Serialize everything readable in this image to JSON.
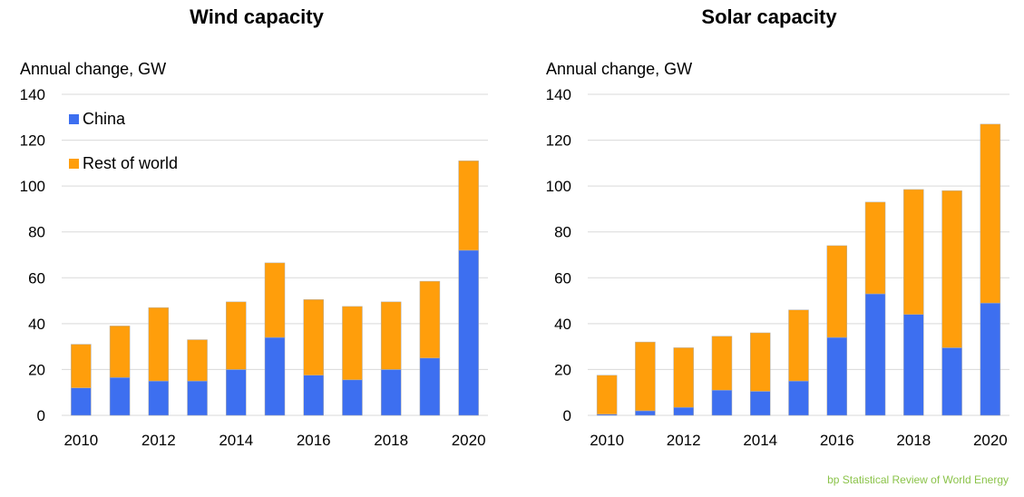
{
  "colors": {
    "china": "#3d6ff0",
    "rest_of_world": "#ff9e0b",
    "grid": "#d9d9d9",
    "source": "#8bc34a"
  },
  "source": "bp Statistical Review of World Energy",
  "chart_data": [
    {
      "type": "bar",
      "stacked": true,
      "title": "Wind capacity",
      "ylabel": "Annual change, GW",
      "xlabel": "",
      "ylim": [
        0,
        140
      ],
      "yticks": [
        0,
        20,
        40,
        60,
        80,
        100,
        120,
        140
      ],
      "categories": [
        2010,
        2011,
        2012,
        2013,
        2014,
        2015,
        2016,
        2017,
        2018,
        2019,
        2020
      ],
      "xtick_labels": [
        "2010",
        "2012",
        "2014",
        "2016",
        "2018",
        "2020"
      ],
      "legend": {
        "position": "top-left"
      },
      "grid": true,
      "series": [
        {
          "name": "China",
          "color_key": "china",
          "values": [
            12,
            16.5,
            15,
            15,
            20,
            34,
            17.5,
            15.5,
            20,
            25,
            72
          ]
        },
        {
          "name": "Rest of world",
          "color_key": "rest_of_world",
          "values": [
            19,
            22.5,
            32,
            18,
            29.5,
            32.5,
            33,
            32,
            29.5,
            33.5,
            39
          ]
        }
      ]
    },
    {
      "type": "bar",
      "stacked": true,
      "title": "Solar capacity",
      "ylabel": "Annual change, GW",
      "xlabel": "",
      "ylim": [
        0,
        140
      ],
      "yticks": [
        0,
        20,
        40,
        60,
        80,
        100,
        120,
        140
      ],
      "categories": [
        2010,
        2011,
        2012,
        2013,
        2014,
        2015,
        2016,
        2017,
        2018,
        2019,
        2020
      ],
      "xtick_labels": [
        "2010",
        "2012",
        "2014",
        "2016",
        "2018",
        "2020"
      ],
      "legend": null,
      "grid": true,
      "series": [
        {
          "name": "China",
          "color_key": "china",
          "values": [
            0.5,
            2,
            3.5,
            11,
            10.5,
            15,
            34,
            53,
            44,
            29.5,
            49
          ]
        },
        {
          "name": "Rest of world",
          "color_key": "rest_of_world",
          "values": [
            17,
            30,
            26,
            23.5,
            25.5,
            31,
            40,
            40,
            54.5,
            68.5,
            78
          ]
        }
      ]
    }
  ]
}
